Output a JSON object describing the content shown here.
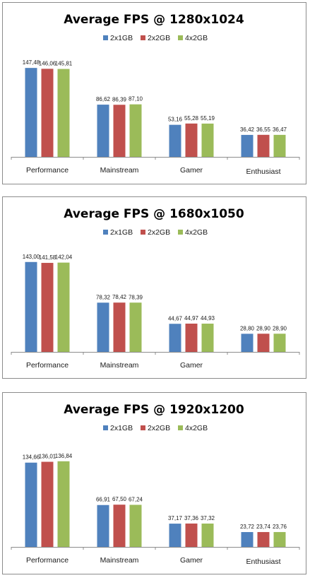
{
  "chart_data": [
    {
      "type": "bar",
      "title": "Average FPS @ 1280x1024",
      "categories": [
        "Performance",
        "Mainstream",
        "Gamer",
        "Enthusiast"
      ],
      "series": [
        {
          "name": "2x1GB",
          "color": "#4f81bd",
          "values": [
            147.48,
            86.62,
            53.16,
            36.42
          ],
          "labels": [
            "147,48",
            "86,62",
            "53,16",
            "36,42"
          ]
        },
        {
          "name": "2x2GB",
          "color": "#c0504d",
          "values": [
            146.06,
            86.39,
            55.28,
            36.55
          ],
          "labels": [
            "146,06",
            "86,39",
            "55,28",
            "36,55"
          ]
        },
        {
          "name": "4x2GB",
          "color": "#9bbb59",
          "values": [
            145.81,
            87.1,
            55.19,
            36.47
          ],
          "labels": [
            "145,81",
            "87,10",
            "55,19",
            "36,47"
          ]
        }
      ],
      "ylim": [
        0,
        150
      ],
      "legend": "top",
      "grid": false
    },
    {
      "type": "bar",
      "title": "Average FPS @ 1680x1050",
      "categories": [
        "Performance",
        "Mainstream",
        "Gamer",
        ""
      ],
      "series": [
        {
          "name": "2x1GB",
          "color": "#4f81bd",
          "values": [
            143.0,
            78.32,
            44.67,
            28.8
          ],
          "labels": [
            "143,00",
            "78,32",
            "44,67",
            "28,80"
          ]
        },
        {
          "name": "2x2GB",
          "color": "#c0504d",
          "values": [
            141.58,
            78.42,
            44.97,
            28.9
          ],
          "labels": [
            "141,58",
            "78,42",
            "44,97",
            "28,90"
          ]
        },
        {
          "name": "4x2GB",
          "color": "#9bbb59",
          "values": [
            142.04,
            78.39,
            44.93,
            28.9
          ],
          "labels": [
            "142,04",
            "78,39",
            "44,93",
            "28,90"
          ]
        }
      ],
      "ylim": [
        0,
        145
      ],
      "legend": "top",
      "grid": false
    },
    {
      "type": "bar",
      "title": "Average FPS @ 1920x1200",
      "categories": [
        "Performance",
        "Mainstream",
        "Gamer",
        "Enthusiast"
      ],
      "series": [
        {
          "name": "2x1GB",
          "color": "#4f81bd",
          "values": [
            134.66,
            66.91,
            37.17,
            23.72
          ],
          "labels": [
            "134,66",
            "66,91",
            "37,17",
            "23,72"
          ]
        },
        {
          "name": "2x2GB",
          "color": "#c0504d",
          "values": [
            136.01,
            67.5,
            37.36,
            23.74
          ],
          "labels": [
            "136,01",
            "67,50",
            "37,36",
            "23,74"
          ]
        },
        {
          "name": "4x2GB",
          "color": "#9bbb59",
          "values": [
            136.84,
            67.24,
            37.32,
            23.76
          ],
          "labels": [
            "136,84",
            "67,24",
            "37,32",
            "23,76"
          ]
        }
      ],
      "ylim": [
        0,
        140
      ],
      "legend": "top",
      "grid": false
    }
  ]
}
